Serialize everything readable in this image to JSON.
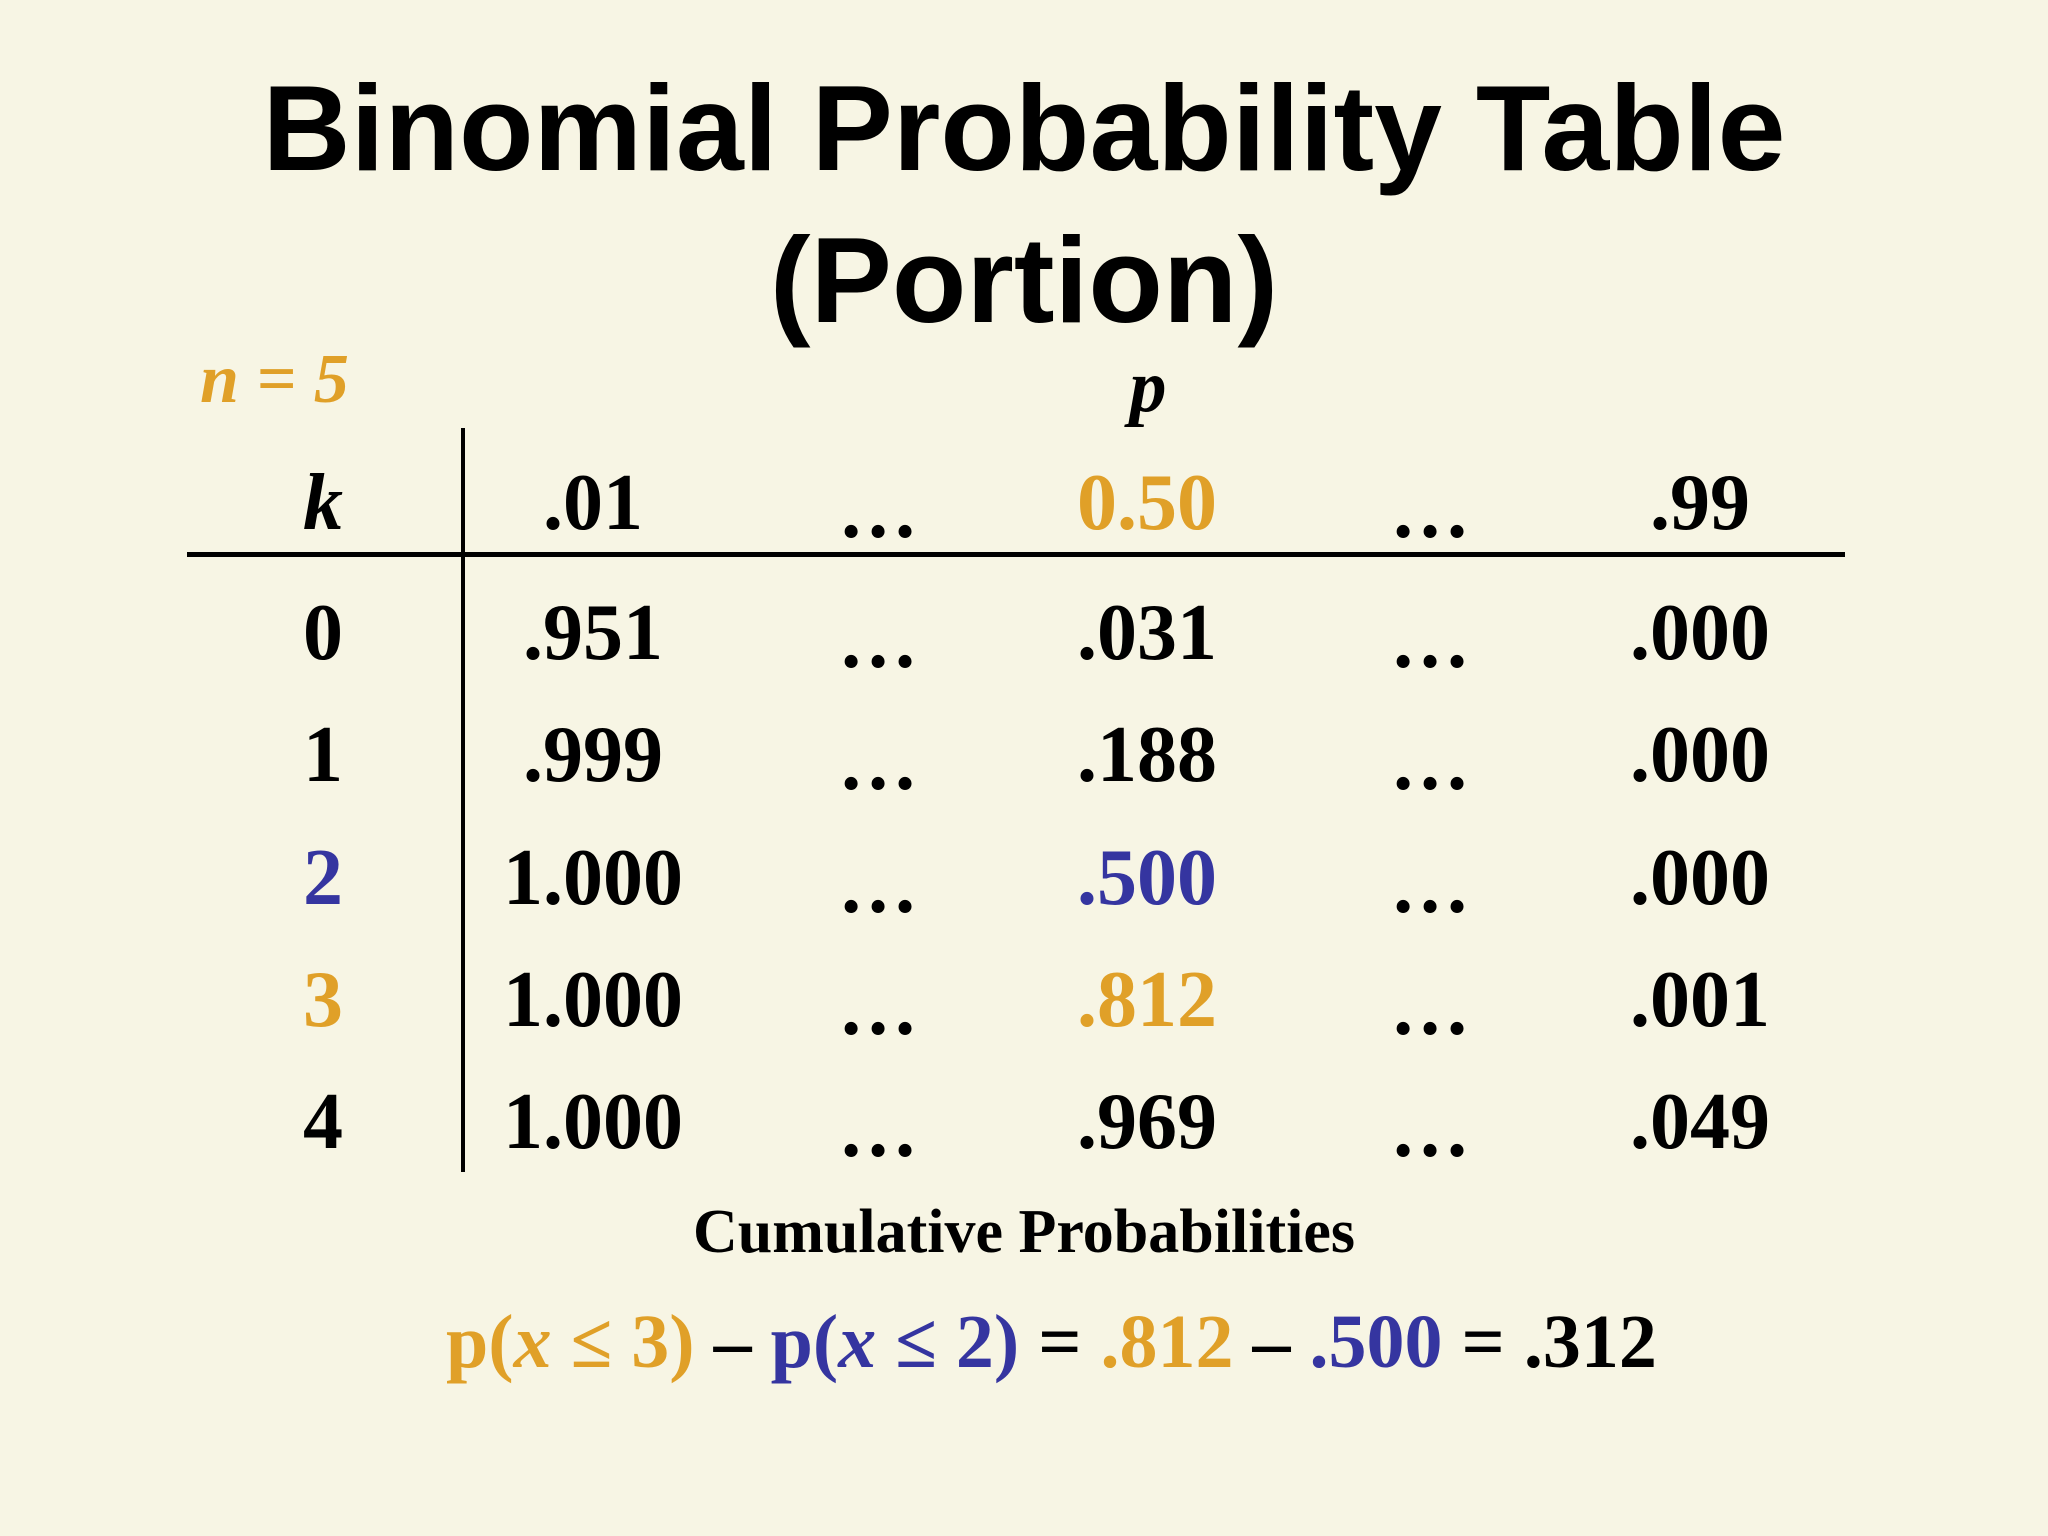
{
  "title": {
    "line1": "Binomial Probability Table",
    "line2": "(Portion)"
  },
  "n_label": "n = 5",
  "p_label": "p",
  "table": {
    "header": {
      "k": "k",
      "c1": ".01",
      "c2": "…",
      "c3": "0.50",
      "c4": "…",
      "c5": ".99"
    },
    "rows": [
      {
        "k": "0",
        "c1": ".951",
        "c2": "…",
        "c3": ".031",
        "c4": "…",
        "c5": ".000"
      },
      {
        "k": "1",
        "c1": ".999",
        "c2": "…",
        "c3": ".188",
        "c4": "…",
        "c5": ".000"
      },
      {
        "k": "2",
        "c1": "1.000",
        "c2": "…",
        "c3": ".500",
        "c4": "…",
        "c5": ".000"
      },
      {
        "k": "3",
        "c1": "1.000",
        "c2": "…",
        "c3": ".812",
        "c4": "…",
        "c5": ".001"
      },
      {
        "k": "4",
        "c1": "1.000",
        "c2": "…",
        "c3": ".969",
        "c4": "…",
        "c5": ".049"
      }
    ]
  },
  "caption": "Cumulative Probabilities",
  "formula": {
    "p1_open": "p(",
    "p1_var": "x",
    "p1_rest": " ≤ 3)",
    "minus1": " – ",
    "p2_open": "p(",
    "p2_var": "x",
    "p2_rest": " ≤ 2)",
    "equals1": " = ",
    "v1": ".812",
    "minus2": " – ",
    "v2": ".500",
    "equals2": " = .312"
  },
  "colors": {
    "background": "#f7f5e4",
    "orange": "#e0a028",
    "blue": "#3535a0",
    "text": "#000000"
  }
}
